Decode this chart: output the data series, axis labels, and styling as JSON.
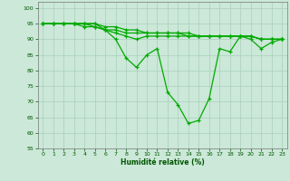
{
  "xlabel": "Humidité relative (%)",
  "background_color": "#cbe8d8",
  "grid_color": "#aacfbc",
  "line_color": "#00aa00",
  "ylim": [
    55,
    102
  ],
  "xlim": [
    -0.5,
    23.5
  ],
  "yticks": [
    55,
    60,
    65,
    70,
    75,
    80,
    85,
    90,
    95,
    100
  ],
  "xticks": [
    0,
    1,
    2,
    3,
    4,
    5,
    6,
    7,
    8,
    9,
    10,
    11,
    12,
    13,
    14,
    15,
    16,
    17,
    18,
    19,
    20,
    21,
    22,
    23
  ],
  "series": [
    [
      95,
      95,
      95,
      95,
      95,
      95,
      93,
      90,
      84,
      81,
      85,
      87,
      73,
      69,
      63,
      64,
      71,
      87,
      86,
      91,
      90,
      87,
      89,
      90
    ],
    [
      95,
      95,
      95,
      95,
      95,
      94,
      93,
      92,
      91,
      90,
      91,
      91,
      91,
      91,
      91,
      91,
      91,
      91,
      91,
      91,
      91,
      90,
      90,
      90
    ],
    [
      95,
      95,
      95,
      95,
      94,
      94,
      93,
      93,
      92,
      92,
      92,
      92,
      92,
      92,
      91,
      91,
      91,
      91,
      91,
      91,
      91,
      90,
      90,
      90
    ],
    [
      95,
      95,
      95,
      95,
      95,
      95,
      94,
      94,
      93,
      93,
      92,
      92,
      92,
      92,
      92,
      91,
      91,
      91,
      91,
      91,
      91,
      90,
      90,
      90
    ]
  ]
}
